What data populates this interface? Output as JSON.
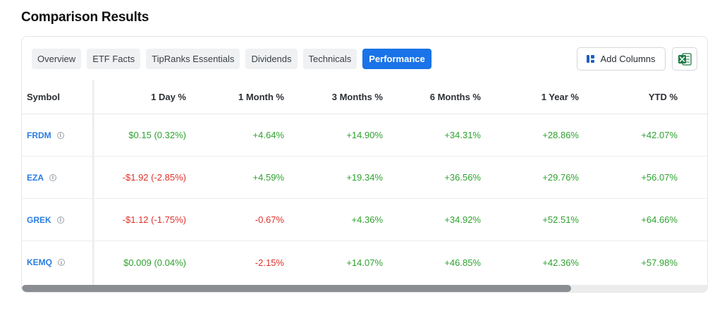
{
  "page": {
    "title": "Comparison Results"
  },
  "tabs": [
    {
      "label": "Overview",
      "active": false
    },
    {
      "label": "ETF Facts",
      "active": false
    },
    {
      "label": "TipRanks Essentials",
      "active": false
    },
    {
      "label": "Dividends",
      "active": false
    },
    {
      "label": "Technicals",
      "active": false
    },
    {
      "label": "Performance",
      "active": true
    }
  ],
  "toolbar": {
    "add_columns_label": "Add Columns",
    "excel_icon": "excel-icon"
  },
  "colors": {
    "accent": "#1a73e8",
    "positive": "#2ea22f",
    "negative": "#e0312a",
    "link": "#2a7de1"
  },
  "table": {
    "headers": [
      "Symbol",
      "1 Day %",
      "1 Month %",
      "3 Months %",
      "6 Months %",
      "1 Year %",
      "YTD %"
    ],
    "rows": [
      {
        "symbol": "FRDM",
        "day": "$0.15 (0.32%)",
        "month": "+4.64%",
        "m3": "+14.90%",
        "m6": "+34.31%",
        "year": "+28.86%",
        "ytd": "+42.07%"
      },
      {
        "symbol": "EZA",
        "day": "-$1.92 (-2.85%)",
        "month": "+4.59%",
        "m3": "+19.34%",
        "m6": "+36.56%",
        "year": "+29.76%",
        "ytd": "+56.07%"
      },
      {
        "symbol": "GREK",
        "day": "-$1.12 (-1.75%)",
        "month": "-0.67%",
        "m3": "+4.36%",
        "m6": "+34.92%",
        "year": "+52.51%",
        "ytd": "+64.66%"
      },
      {
        "symbol": "KEMQ",
        "day": "$0.009 (0.04%)",
        "month": "-2.15%",
        "m3": "+14.07%",
        "m6": "+46.85%",
        "year": "+42.36%",
        "ytd": "+57.98%"
      }
    ]
  },
  "scrollbar": {
    "horizontal_position": 0
  }
}
